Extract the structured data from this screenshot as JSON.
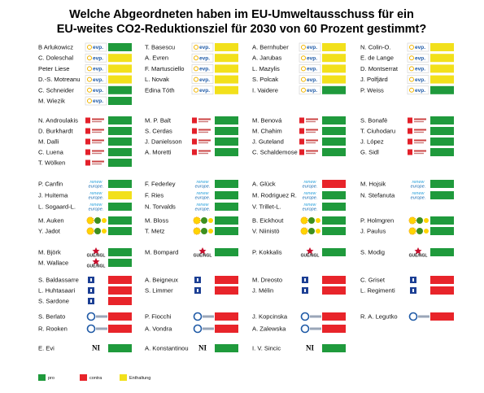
{
  "title": [
    "Welche Abgeordneten haben im EU-Umweltausschuss für ein",
    "EU-weites CO2-Reduktionsziel für 2030 von 60 Prozent gestimmt?"
  ],
  "logos": {
    "evp": "evp.",
    "renew": [
      "renew",
      "europe."
    ],
    "gue": "GUE/NGL",
    "ni": "NI"
  },
  "legend": [
    {
      "label": "pro",
      "color": "#1f9a3c"
    },
    {
      "label": "contra",
      "color": "#e8242a"
    },
    {
      "label": "Enthaltung",
      "color": "#f2e01b"
    }
  ],
  "groups": [
    {
      "party": "evp",
      "columns": [
        [
          {
            "name": "B Arlukowicz",
            "vote": "pro"
          },
          {
            "name": "C. Doleschal",
            "vote": "Enthaltung"
          },
          {
            "name": "Peter Liese",
            "vote": "Enthaltung"
          },
          {
            "name": "D.-S. Motreanu",
            "vote": "Enthaltung"
          },
          {
            "name": "C. Schneider",
            "vote": "pro"
          },
          {
            "name": "M. Wiezik",
            "vote": "pro"
          }
        ],
        [
          {
            "name": "T. Basescu",
            "vote": "Enthaltung"
          },
          {
            "name": "A. Evren",
            "vote": "Enthaltung"
          },
          {
            "name": "F. Martusciello",
            "vote": "Enthaltung"
          },
          {
            "name": "L. Novak",
            "vote": "Enthaltung"
          },
          {
            "name": "Edina Tóth",
            "vote": "Enthaltung"
          }
        ],
        [
          {
            "name": "A. Bernhuber",
            "vote": "Enthaltung"
          },
          {
            "name": "A. Jarubas",
            "vote": "Enthaltung"
          },
          {
            "name": "L. Mazylis",
            "vote": "Enthaltung"
          },
          {
            "name": "S. Polcak",
            "vote": "Enthaltung"
          },
          {
            "name": "I. Vaidere",
            "vote": "pro"
          }
        ],
        [
          {
            "name": "N. Colin-O.",
            "vote": "Enthaltung"
          },
          {
            "name": "E. de Lange",
            "vote": "Enthaltung"
          },
          {
            "name": "D. Montserrat",
            "vote": "Enthaltung"
          },
          {
            "name": "J. Polfjärd",
            "vote": "Enthaltung"
          },
          {
            "name": "P. Weiss",
            "vote": "pro"
          }
        ]
      ]
    },
    {
      "party": "sd",
      "columns": [
        [
          {
            "name": "N. Androulakis",
            "vote": "pro"
          },
          {
            "name": "D. Burkhardt",
            "vote": "pro"
          },
          {
            "name": "M. Dalli",
            "vote": "pro"
          },
          {
            "name": "C. Luena",
            "vote": "pro"
          },
          {
            "name": "T. Wölken",
            "vote": "pro"
          }
        ],
        [
          {
            "name": "M. P. Balt",
            "vote": "pro"
          },
          {
            "name": "S. Cerdas",
            "vote": "pro"
          },
          {
            "name": "J. Danielsson",
            "vote": "pro"
          },
          {
            "name": "A. Moretti",
            "vote": "pro"
          }
        ],
        [
          {
            "name": "M. Benová",
            "vote": "pro"
          },
          {
            "name": "M. Chahim",
            "vote": "pro"
          },
          {
            "name": "J. Guteland",
            "vote": "pro"
          },
          {
            "name": "C. Schaldemose",
            "vote": "pro"
          }
        ],
        [
          {
            "name": "S. Bonafè",
            "vote": "pro"
          },
          {
            "name": "T. Ciuhodaru",
            "vote": "pro"
          },
          {
            "name": "J. López",
            "vote": "pro"
          },
          {
            "name": "G. Sidl",
            "vote": "pro"
          }
        ]
      ]
    },
    {
      "party": "renew",
      "columns": [
        [
          {
            "name": "P. Canfin",
            "vote": "pro"
          },
          {
            "name": "J. Huitema",
            "vote": "Enthaltung"
          },
          {
            "name": "L. Sogaard-L.",
            "vote": "pro"
          }
        ],
        [
          {
            "name": "F. Federley",
            "vote": "pro"
          },
          {
            "name": "F. Ries",
            "vote": "pro"
          },
          {
            "name": "N. Torvalds",
            "vote": "pro"
          }
        ],
        [
          {
            "name": "A. Glück",
            "vote": "contra"
          },
          {
            "name": "M. Rodriguez R.",
            "vote": "pro"
          },
          {
            "name": "V. Trillet-L.",
            "vote": "pro"
          }
        ],
        [
          {
            "name": "M. Hojsik",
            "vote": "pro"
          },
          {
            "name": "N. Stefanuta",
            "vote": "pro"
          }
        ]
      ]
    },
    {
      "party": "greens",
      "columns": [
        [
          {
            "name": "M. Auken",
            "vote": "pro"
          },
          {
            "name": "Y. Jadot",
            "vote": "pro"
          }
        ],
        [
          {
            "name": "M. Bloss",
            "vote": "pro"
          },
          {
            "name": "T. Metz",
            "vote": "pro"
          }
        ],
        [
          {
            "name": "B. Eickhout",
            "vote": "pro"
          },
          {
            "name": "V. Niinistö",
            "vote": "pro"
          }
        ],
        [
          {
            "name": "P. Holmgren",
            "vote": "pro"
          },
          {
            "name": "J. Paulus",
            "vote": "pro"
          }
        ]
      ]
    },
    {
      "party": "gue",
      "columns": [
        [
          {
            "name": "M. Björk",
            "vote": "pro"
          },
          {
            "name": "M. Wallace",
            "vote": "pro"
          }
        ],
        [
          {
            "name": "M. Bompard",
            "vote": "pro"
          }
        ],
        [
          {
            "name": "P. Kokkalis",
            "vote": "pro"
          }
        ],
        [
          {
            "name": "S. Modig",
            "vote": "pro"
          }
        ]
      ]
    },
    {
      "party": "id",
      "columns": [
        [
          {
            "name": "S. Baldassarre",
            "vote": "contra"
          },
          {
            "name": "L. Huhtasaari",
            "vote": "contra"
          },
          {
            "name": "S. Sardone",
            "vote": "contra"
          }
        ],
        [
          {
            "name": "A. Beigneux",
            "vote": "contra"
          },
          {
            "name": "S. Limmer",
            "vote": "contra"
          }
        ],
        [
          {
            "name": "M. Dreosto",
            "vote": "contra"
          },
          {
            "name": "J. Mélin",
            "vote": "contra"
          }
        ],
        [
          {
            "name": "C. Griset",
            "vote": "contra"
          },
          {
            "name": "L. Regimenti",
            "vote": "contra"
          }
        ]
      ]
    },
    {
      "party": "ecr",
      "columns": [
        [
          {
            "name": "S. Berlato",
            "vote": "contra"
          },
          {
            "name": "R. Rooken",
            "vote": "contra"
          }
        ],
        [
          {
            "name": "P. Fiocchi",
            "vote": "contra"
          },
          {
            "name": "A. Vondra",
            "vote": "contra"
          }
        ],
        [
          {
            "name": "J. Kopcinska",
            "vote": "contra"
          },
          {
            "name": "A. Zalewska",
            "vote": "contra"
          }
        ],
        [
          {
            "name": "R. A. Legutko",
            "vote": "contra"
          }
        ]
      ]
    },
    {
      "party": "ni",
      "columns": [
        [
          {
            "name": "E. Evi",
            "vote": "pro"
          }
        ],
        [
          {
            "name": "A. Konstantinou",
            "vote": "pro"
          }
        ],
        [
          {
            "name": "I. V. Sincic",
            "vote": "pro"
          }
        ]
      ]
    }
  ]
}
